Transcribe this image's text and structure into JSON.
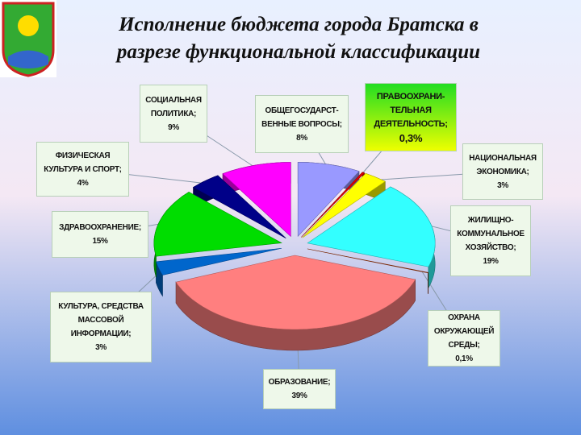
{
  "chart_data": {
    "type": "pie",
    "title": "Исполнение бюджета города Братска в\nразрезе функциональной классификации",
    "categories": [
      "ОБЩЕГОСУДАРСТ-\nВЕННЫЕ ВОПРОСЫ;",
      "ПРАВООХРАНИ-\nТЕЛЬНАЯ\nДЕЯТЕЛЬНОСТЬ;",
      "НАЦИОНАЛЬНАЯ\nЭКОНОМИКА;",
      "ЖИЛИЩНО-\nКОММУНАЛЬНОЕ\nХОЗЯЙСТВО;",
      "ОХРАНА\nОКРУЖАЮЩЕЙ\nСРЕДЫ;",
      "ОБРАЗОВАНИЕ;",
      "КУЛЬТУРА, СРЕДСТВА\nМАССОВОЙ\nИНФОРМАЦИИ;",
      "ЗДРАВООХРАНЕНИЕ;",
      "ФИЗИЧЕСКАЯ\nКУЛЬТУРА И СПОРТ;",
      "СОЦИАЛЬНАЯ\nПОЛИТИКА;"
    ],
    "values": [
      8,
      0.3,
      3,
      19,
      0.1,
      39,
      3,
      15,
      4,
      9
    ],
    "value_labels": [
      "8%",
      "0,3%",
      "3%",
      "19%",
      "0,1%",
      "39%",
      "3%",
      "15%",
      "4%",
      "9%"
    ],
    "colors": [
      "#9999ff",
      "#dd0000",
      "#ffff00",
      "#33ffff",
      "#aa3300",
      "#ff7f7f",
      "#0066cc",
      "#00dd00",
      "#000088",
      "#ff00ff"
    ]
  }
}
